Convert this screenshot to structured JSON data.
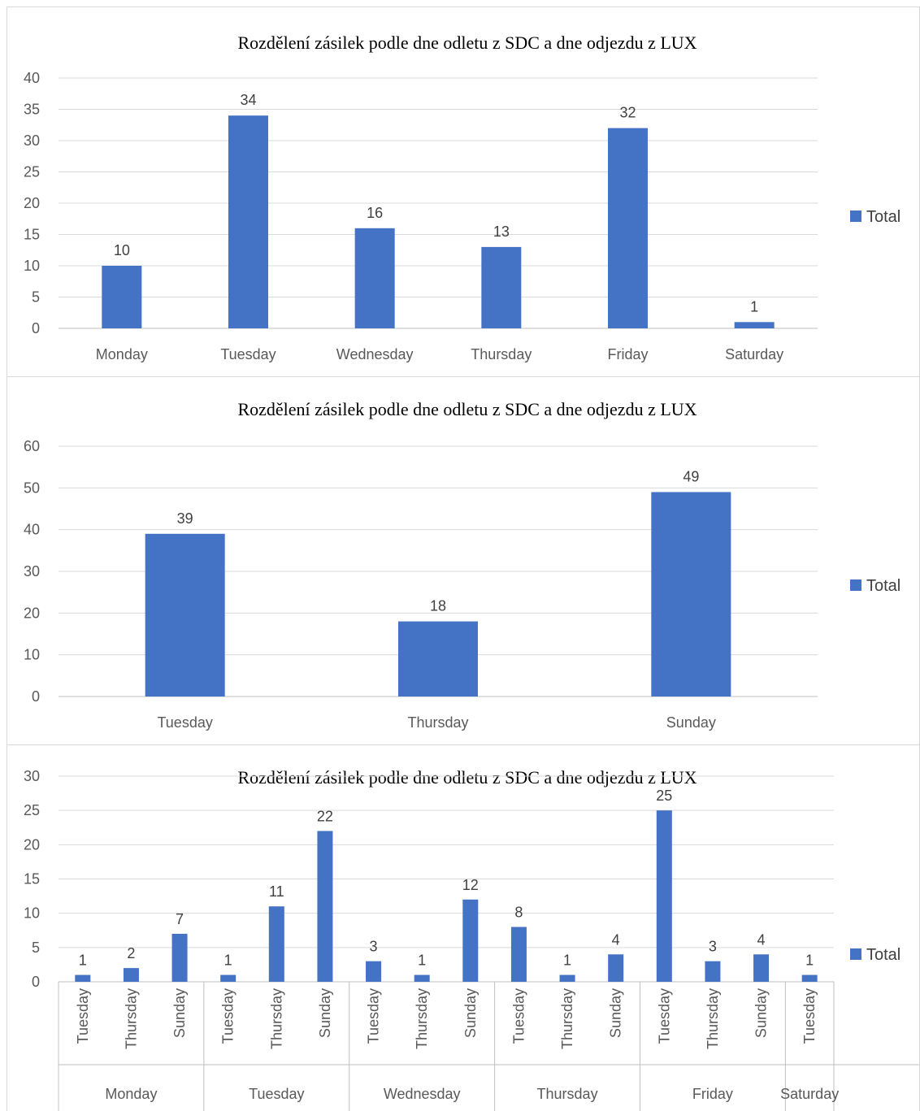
{
  "chart_data": [
    {
      "type": "bar",
      "title": "Rozdělení zásilek podle dne odletu z SDC a dne odjezdu z LUX",
      "categories": [
        "Monday",
        "Tuesday",
        "Wednesday",
        "Thursday",
        "Friday",
        "Saturday"
      ],
      "series": [
        {
          "name": "Total",
          "values": [
            10,
            34,
            16,
            13,
            32,
            1
          ]
        }
      ],
      "ylim": [
        0,
        40
      ],
      "yticks": [
        0,
        5,
        10,
        15,
        20,
        25,
        30,
        35,
        40
      ],
      "grid": true,
      "legend": "right",
      "color": "#4472C4"
    },
    {
      "type": "bar",
      "title": "Rozdělení zásilek podle dne odletu z SDC a dne odjezdu z LUX",
      "categories": [
        "Tuesday",
        "Thursday",
        "Sunday"
      ],
      "series": [
        {
          "name": "Total",
          "values": [
            39,
            18,
            49
          ]
        }
      ],
      "ylim": [
        0,
        60
      ],
      "yticks": [
        0,
        10,
        20,
        30,
        40,
        50,
        60
      ],
      "grid": true,
      "legend": "right",
      "color": "#4472C4"
    },
    {
      "type": "bar",
      "title": "Rozdělení zásilek podle dne odletu z SDC a dne odjezdu z LUX",
      "groups": [
        {
          "label": "Monday",
          "categories": [
            "Tuesday",
            "Thursday",
            "Sunday"
          ],
          "values": [
            1,
            2,
            7
          ]
        },
        {
          "label": "Tuesday",
          "categories": [
            "Tuesday",
            "Thursday",
            "Sunday"
          ],
          "values": [
            1,
            11,
            22
          ]
        },
        {
          "label": "Wednesday",
          "categories": [
            "Tuesday",
            "Thursday",
            "Sunday"
          ],
          "values": [
            3,
            1,
            12
          ]
        },
        {
          "label": "Thursday",
          "categories": [
            "Tuesday",
            "Thursday",
            "Sunday"
          ],
          "values": [
            8,
            1,
            4
          ]
        },
        {
          "label": "Friday",
          "categories": [
            "Tuesday",
            "Thursday",
            "Sunday"
          ],
          "values": [
            25,
            3,
            4
          ]
        },
        {
          "label": "Saturday",
          "categories": [
            "Tuesday"
          ],
          "values": [
            1
          ]
        }
      ],
      "series": [
        {
          "name": "Total",
          "values": [
            1,
            2,
            7,
            1,
            11,
            22,
            3,
            1,
            12,
            8,
            1,
            4,
            25,
            3,
            4,
            1
          ]
        }
      ],
      "ylim": [
        0,
        30
      ],
      "yticks": [
        0,
        5,
        10,
        15,
        20,
        25,
        30
      ],
      "grid": true,
      "legend": "right",
      "color": "#4472C4"
    }
  ]
}
